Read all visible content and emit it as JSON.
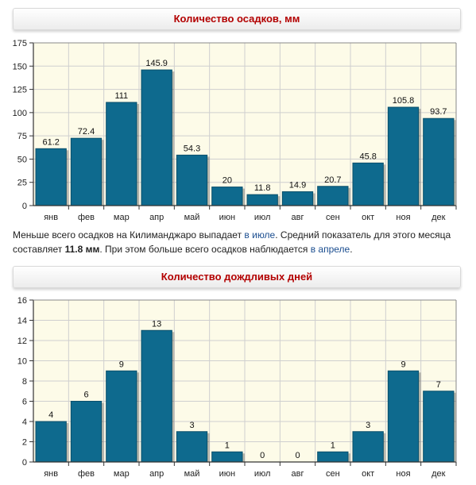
{
  "sections": {
    "precip_title": "Количество осадков, мм",
    "rain_title": "Количество дождливых дней"
  },
  "description": {
    "part1": "Меньше всего осадков на Килиманджаро выпадает ",
    "link_month_min": "в июле",
    "part2": ". Средний показатель для этого месяца составляет ",
    "value_min": "11.8",
    "unit": " мм",
    "part3": ". При этом больше всего осадков наблюдается ",
    "link_month_max": "в апреле",
    "part4": "."
  },
  "colors": {
    "bar": "#0e6a8e",
    "bar_dark": "#0a4f6b",
    "plot_bg": "#fdfbe8",
    "grid": "#cfcfcf",
    "header_text": "#b30000",
    "link": "#1a4d8f"
  },
  "chart_data": [
    {
      "type": "bar",
      "title": "Количество осадков, мм",
      "categories": [
        "янв",
        "фев",
        "мар",
        "апр",
        "май",
        "июн",
        "июл",
        "авг",
        "сен",
        "окт",
        "ноя",
        "дек"
      ],
      "values": [
        61.2,
        72.4,
        111,
        145.9,
        54.3,
        20,
        11.8,
        14.9,
        20.7,
        45.8,
        105.8,
        93.7
      ],
      "value_labels": [
        "61.2",
        "72.4",
        "111",
        "145.9",
        "54.3",
        "20",
        "11.8",
        "14.9",
        "20.7",
        "45.8",
        "105.8",
        "93.7"
      ],
      "ylim": [
        0,
        175
      ],
      "yticks": [
        0,
        25,
        50,
        75,
        100,
        125,
        150,
        175
      ],
      "grid": true,
      "xlabel": "",
      "ylabel": ""
    },
    {
      "type": "bar",
      "title": "Количество дождливых дней",
      "categories": [
        "янв",
        "фев",
        "мар",
        "апр",
        "май",
        "июн",
        "июл",
        "авг",
        "сен",
        "окт",
        "ноя",
        "дек"
      ],
      "values": [
        4,
        6,
        9,
        13,
        3,
        1,
        0,
        0,
        1,
        3,
        9,
        7
      ],
      "value_labels": [
        "4",
        "6",
        "9",
        "13",
        "3",
        "1",
        "0",
        "0",
        "1",
        "3",
        "9",
        "7"
      ],
      "ylim": [
        0,
        16
      ],
      "yticks": [
        0,
        2,
        4,
        6,
        8,
        10,
        12,
        14,
        16
      ],
      "grid": true,
      "xlabel": "",
      "ylabel": ""
    }
  ]
}
